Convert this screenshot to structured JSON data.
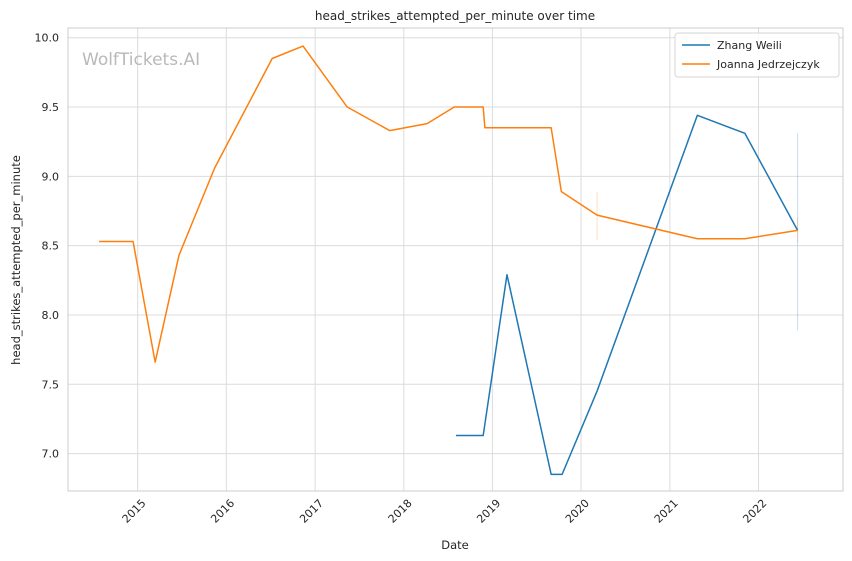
{
  "chart_data": {
    "type": "line",
    "title": "head_strikes_attempted_per_minute over time",
    "xlabel": "Date",
    "ylabel": "head_strikes_attempted_per_minute",
    "watermark": "WolfTickets.AI",
    "xlim": [
      "2014-03-20",
      "2022-12-15"
    ],
    "ylim": [
      6.73,
      10.07
    ],
    "x_ticks": [
      "2015",
      "2016",
      "2017",
      "2018",
      "2019",
      "2020",
      "2021",
      "2022"
    ],
    "y_ticks": [
      "7.0",
      "7.5",
      "8.0",
      "8.5",
      "9.0",
      "9.5",
      "10.0"
    ],
    "grid": true,
    "legend_position": "top-right",
    "series": [
      {
        "name": "Zhang Weili",
        "color": "#1f77b4",
        "points": [
          [
            "2018-08-04",
            7.13
          ],
          [
            "2018-11-24",
            7.13
          ],
          [
            "2019-03-02",
            8.29
          ],
          [
            "2019-08-31",
            6.85
          ],
          [
            "2019-10-15",
            6.85
          ],
          [
            "2020-03-07",
            7.45
          ],
          [
            "2021-04-24",
            9.44
          ],
          [
            "2021-11-06",
            9.31
          ],
          [
            "2022-06-11",
            8.61
          ]
        ],
        "error_bars": [
          {
            "date": "2022-06-11",
            "low": 7.89,
            "high": 9.31
          }
        ]
      },
      {
        "name": "Joanna Jedrzejczyk",
        "color": "#ff7f0e",
        "points": [
          [
            "2014-07-26",
            8.53
          ],
          [
            "2014-12-13",
            8.53
          ],
          [
            "2015-03-14",
            7.66
          ],
          [
            "2015-06-20",
            8.43
          ],
          [
            "2015-11-14",
            9.06
          ],
          [
            "2016-07-08",
            9.85
          ],
          [
            "2016-11-12",
            9.94
          ],
          [
            "2017-05-13",
            9.5
          ],
          [
            "2017-11-04",
            9.33
          ],
          [
            "2018-04-07",
            9.38
          ],
          [
            "2018-07-28",
            9.5
          ],
          [
            "2018-11-24",
            9.5
          ],
          [
            "2018-12-01",
            9.35
          ],
          [
            "2019-08-31",
            9.35
          ],
          [
            "2019-10-12",
            8.89
          ],
          [
            "2020-03-07",
            8.72
          ],
          [
            "2021-04-24",
            8.55
          ],
          [
            "2021-11-06",
            8.55
          ],
          [
            "2022-06-11",
            8.61
          ]
        ],
        "error_bars": [
          {
            "date": "2020-03-07",
            "low": 8.54,
            "high": 8.89
          },
          {
            "date": "2022-06-11",
            "low": 8.52,
            "high": 8.7
          }
        ]
      }
    ]
  }
}
